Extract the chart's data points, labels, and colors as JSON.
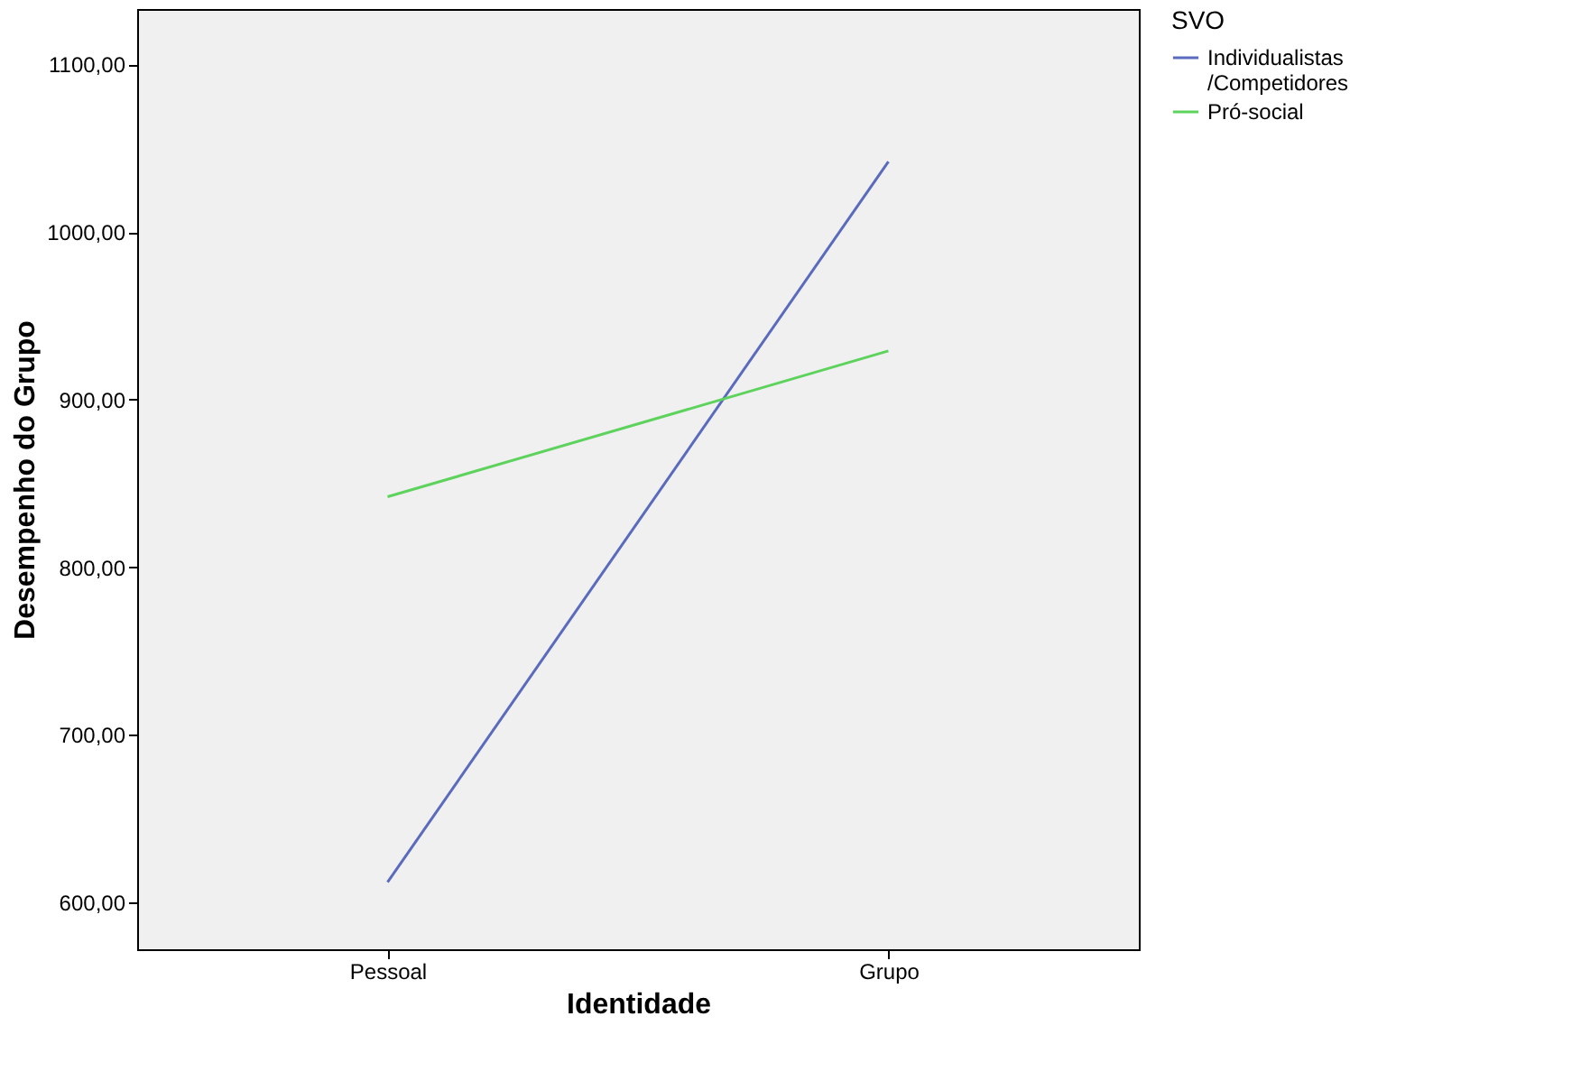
{
  "chart_data": {
    "type": "line",
    "xlabel": "Identidade",
    "ylabel": "Desempenho do Grupo",
    "legend_title": "SVO",
    "categories": [
      "Pessoal",
      "Grupo"
    ],
    "series": [
      {
        "name": "Individualistas/Competidores",
        "color": "#5a6bbd",
        "values": [
          612,
          1042
        ]
      },
      {
        "name": "Pró-social",
        "color": "#5dd35d",
        "values": [
          842,
          929
        ]
      }
    ],
    "ylim": [
      572,
      1133
    ],
    "yticks": [
      {
        "value": 600,
        "label": "600,00"
      },
      {
        "value": 700,
        "label": "700,00"
      },
      {
        "value": 800,
        "label": "800,00"
      },
      {
        "value": 900,
        "label": "900,00"
      },
      {
        "value": 1000,
        "label": "1000,00"
      },
      {
        "value": 1100,
        "label": "1100,00"
      }
    ],
    "grid": false,
    "legend": "top right",
    "marker": "none",
    "line_style": "solid"
  }
}
